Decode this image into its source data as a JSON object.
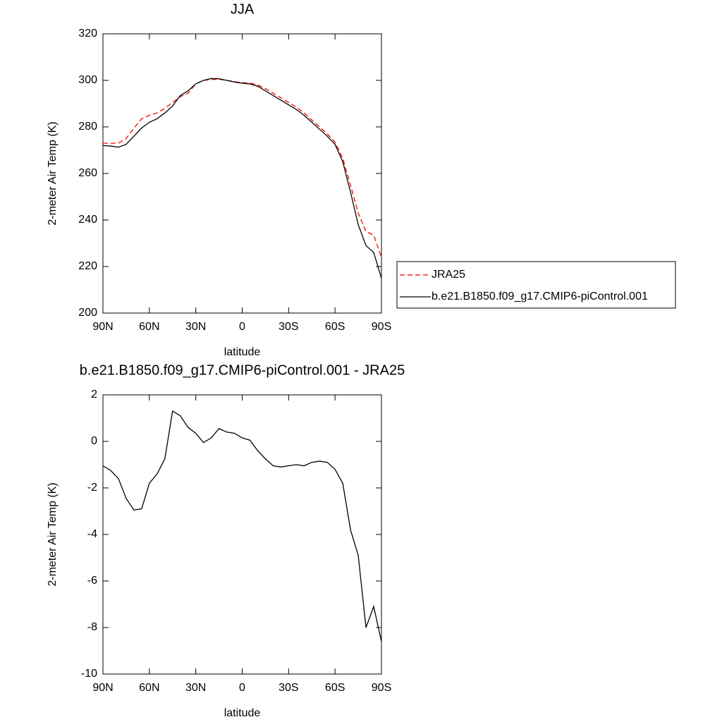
{
  "chart_data": [
    {
      "type": "line",
      "title": "JJA",
      "x_label": "latitude",
      "y_label": "2-meter Air Temp (K)",
      "x": [
        90,
        85,
        80,
        75,
        70,
        65,
        60,
        55,
        50,
        45,
        40,
        35,
        30,
        25,
        20,
        15,
        10,
        5,
        0,
        -5,
        -10,
        -15,
        -20,
        -25,
        -30,
        -35,
        -40,
        -45,
        -50,
        -55,
        -60,
        -65,
        -70,
        -75,
        -80,
        -85,
        -90
      ],
      "xlim": [
        90,
        -90
      ],
      "xticks": [
        {
          "value": 90,
          "label": "90N"
        },
        {
          "value": 60,
          "label": "60N"
        },
        {
          "value": 30,
          "label": "30N"
        },
        0,
        {
          "value": -30,
          "label": "30S"
        },
        {
          "value": -60,
          "label": "60S"
        },
        {
          "value": -90,
          "label": "90S"
        }
      ],
      "ylim": [
        200,
        320
      ],
      "yticks": [
        200,
        220,
        240,
        260,
        280,
        300,
        320
      ],
      "legend": "right",
      "series": [
        {
          "name": "JRA25",
          "color": "#ff0000",
          "line_style": "dashed",
          "values": [
            273,
            273,
            273,
            275,
            279.5,
            283.5,
            285,
            286,
            288,
            290.5,
            293,
            294.5,
            298.5,
            300,
            300.4,
            300.5,
            300,
            299.5,
            299,
            298.8,
            298,
            296.5,
            294.5,
            292.5,
            290.5,
            288.5,
            286,
            283,
            280,
            277,
            273.5,
            266.5,
            255,
            243,
            235,
            233.5,
            224
          ]
        },
        {
          "name": "b.e21.B1850.f09_g17.CMIP6-piControl.001",
          "color": "#000000",
          "line_style": "solid",
          "values": [
            272,
            271.8,
            271.3,
            272.5,
            276,
            279.5,
            282,
            283.5,
            286,
            289,
            293.5,
            295.5,
            298.5,
            300,
            300.8,
            300.7,
            300,
            299.3,
            298.8,
            298.5,
            297.5,
            295.5,
            293.5,
            291.5,
            289.5,
            287.5,
            285,
            282,
            279,
            276,
            272.5,
            265,
            252,
            238,
            229,
            226,
            215
          ]
        }
      ]
    },
    {
      "type": "line",
      "title": "b.e21.B1850.f09_g17.CMIP6-piControl.001 - JRA25",
      "x_label": "latitude",
      "y_label": "2-meter Air Temp (K)",
      "x": [
        90,
        85,
        80,
        75,
        70,
        65,
        60,
        55,
        50,
        45,
        40,
        35,
        30,
        25,
        20,
        15,
        10,
        5,
        0,
        -5,
        -10,
        -15,
        -20,
        -25,
        -30,
        -35,
        -40,
        -45,
        -50,
        -55,
        -60,
        -65,
        -70,
        -75,
        -80,
        -85,
        -90
      ],
      "xlim": [
        90,
        -90
      ],
      "xticks": [
        {
          "value": 90,
          "label": "90N"
        },
        {
          "value": 60,
          "label": "60N"
        },
        {
          "value": 30,
          "label": "30N"
        },
        0,
        {
          "value": -30,
          "label": "30S"
        },
        {
          "value": -60,
          "label": "60S"
        },
        {
          "value": -90,
          "label": "90S"
        }
      ],
      "ylim": [
        -10,
        2
      ],
      "yticks": [
        -10,
        -8,
        -6,
        -4,
        -2,
        0,
        2
      ],
      "series": [
        {
          "color": "#000000",
          "line_style": "solid",
          "values": [
            -1.05,
            -1.25,
            -1.6,
            -2.45,
            -2.95,
            -2.9,
            -1.8,
            -1.4,
            -0.75,
            1.3,
            1.1,
            0.6,
            0.35,
            -0.05,
            0.15,
            0.55,
            0.4,
            0.35,
            0.15,
            0.05,
            -0.4,
            -0.75,
            -1.05,
            -1.1,
            -1.05,
            -1.0,
            -1.05,
            -0.9,
            -0.85,
            -0.9,
            -1.2,
            -1.8,
            -3.8,
            -4.9,
            -8.0,
            -7.1,
            -8.6
          ]
        }
      ]
    }
  ]
}
